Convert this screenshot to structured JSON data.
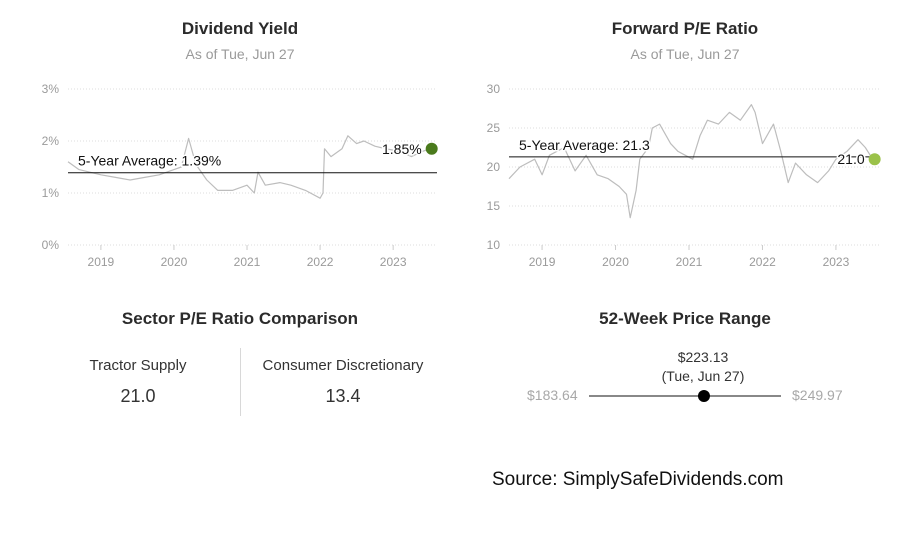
{
  "sections": {
    "dividend": {
      "title": "Dividend Yield",
      "subtitle": "As of Tue, Jun 27"
    },
    "pe": {
      "title": "Forward P/E Ratio",
      "subtitle": "As of Tue, Jun 27"
    },
    "sector": {
      "title": "Sector P/E Ratio Comparison",
      "items": [
        {
          "name": "Tractor Supply",
          "value": "21.0"
        },
        {
          "name": "Consumer Discretionary",
          "value": "13.4"
        }
      ]
    },
    "range52": {
      "title": "52-Week Price Range",
      "low": "$183.64",
      "high": "$249.97",
      "current_price": "$223.13",
      "current_date": "(Tue, Jun 27)",
      "position_fraction": 0.5988
    }
  },
  "source": "Source: SimplySafeDividends.com",
  "colors": {
    "line": "#bdbdbd",
    "average": "#111111",
    "dividend_dot": "#4a7a1c",
    "pe_dot": "#9bc24a",
    "grid": "#dddddd",
    "axis_text": "#9a9a9a"
  },
  "chart_data": [
    {
      "type": "line",
      "title": "Dividend Yield",
      "subtitle": "As of Tue, Jun 27",
      "y_unit": "%",
      "ylim": [
        0,
        3
      ],
      "yticks": [
        0,
        1,
        2,
        3
      ],
      "ytick_labels": [
        "0%",
        "1%",
        "2%",
        "3%"
      ],
      "xlim": [
        2018.55,
        2023.6
      ],
      "xticks": [
        2019,
        2020,
        2021,
        2022,
        2023
      ],
      "xtick_labels": [
        "2019",
        "2020",
        "2021",
        "2022",
        "2023"
      ],
      "grid": true,
      "series": [
        {
          "points": [
            [
              2018.55,
              1.6
            ],
            [
              2018.7,
              1.45
            ],
            [
              2018.85,
              1.4
            ],
            [
              2019.0,
              1.35
            ],
            [
              2019.2,
              1.3
            ],
            [
              2019.4,
              1.25
            ],
            [
              2019.6,
              1.3
            ],
            [
              2019.8,
              1.35
            ],
            [
              2020.0,
              1.45
            ],
            [
              2020.1,
              1.5
            ],
            [
              2020.2,
              2.05
            ],
            [
              2020.3,
              1.55
            ],
            [
              2020.45,
              1.25
            ],
            [
              2020.6,
              1.05
            ],
            [
              2020.8,
              1.05
            ],
            [
              2021.0,
              1.15
            ],
            [
              2021.1,
              1.0
            ],
            [
              2021.15,
              1.4
            ],
            [
              2021.25,
              1.15
            ],
            [
              2021.45,
              1.2
            ],
            [
              2021.6,
              1.15
            ],
            [
              2021.8,
              1.05
            ],
            [
              2022.0,
              0.9
            ],
            [
              2022.04,
              1.0
            ],
            [
              2022.06,
              1.85
            ],
            [
              2022.15,
              1.7
            ],
            [
              2022.3,
              1.85
            ],
            [
              2022.38,
              2.1
            ],
            [
              2022.5,
              1.95
            ],
            [
              2022.6,
              2.0
            ],
            [
              2022.75,
              1.9
            ],
            [
              2022.9,
              1.85
            ],
            [
              2023.1,
              1.8
            ],
            [
              2023.25,
              1.7
            ],
            [
              2023.4,
              1.8
            ],
            [
              2023.5,
              1.85
            ]
          ]
        }
      ],
      "average": {
        "label": "5-Year Average: 1.39%",
        "value": 1.39
      },
      "latest": {
        "label": "1.85%",
        "value": 1.85
      }
    },
    {
      "type": "line",
      "title": "Forward P/E Ratio",
      "subtitle": "As of Tue, Jun 27",
      "ylim": [
        10,
        30
      ],
      "yticks": [
        10,
        15,
        20,
        25,
        30
      ],
      "ytick_labels": [
        "10",
        "15",
        "20",
        "25",
        "30"
      ],
      "xlim": [
        2018.55,
        2023.6
      ],
      "xticks": [
        2019,
        2020,
        2021,
        2022,
        2023
      ],
      "xtick_labels": [
        "2019",
        "2020",
        "2021",
        "2022",
        "2023"
      ],
      "grid": true,
      "series": [
        {
          "points": [
            [
              2018.55,
              18.5
            ],
            [
              2018.7,
              20
            ],
            [
              2018.9,
              21
            ],
            [
              2019.0,
              19
            ],
            [
              2019.1,
              21.5
            ],
            [
              2019.3,
              22.5
            ],
            [
              2019.45,
              19.5
            ],
            [
              2019.6,
              21.5
            ],
            [
              2019.75,
              19
            ],
            [
              2019.9,
              18.5
            ],
            [
              2020.05,
              17.5
            ],
            [
              2020.15,
              16.5
            ],
            [
              2020.2,
              13.5
            ],
            [
              2020.28,
              17
            ],
            [
              2020.33,
              21
            ],
            [
              2020.45,
              22.5
            ],
            [
              2020.5,
              25
            ],
            [
              2020.6,
              25.5
            ],
            [
              2020.75,
              23
            ],
            [
              2020.85,
              22
            ],
            [
              2020.95,
              21.5
            ],
            [
              2021.05,
              21
            ],
            [
              2021.15,
              24
            ],
            [
              2021.25,
              26
            ],
            [
              2021.4,
              25.5
            ],
            [
              2021.55,
              27
            ],
            [
              2021.7,
              26
            ],
            [
              2021.85,
              28
            ],
            [
              2021.9,
              27
            ],
            [
              2022.0,
              23
            ],
            [
              2022.15,
              25.5
            ],
            [
              2022.25,
              22
            ],
            [
              2022.35,
              18
            ],
            [
              2022.45,
              20.5
            ],
            [
              2022.6,
              19
            ],
            [
              2022.75,
              18
            ],
            [
              2022.9,
              19.5
            ],
            [
              2023.0,
              21
            ],
            [
              2023.15,
              22
            ],
            [
              2023.3,
              23.5
            ],
            [
              2023.4,
              22.5
            ],
            [
              2023.5,
              21
            ]
          ]
        }
      ],
      "average": {
        "label": "5-Year Average: 21.3",
        "value": 21.3
      },
      "latest": {
        "label": "21.0",
        "value": 21.0
      }
    }
  ]
}
